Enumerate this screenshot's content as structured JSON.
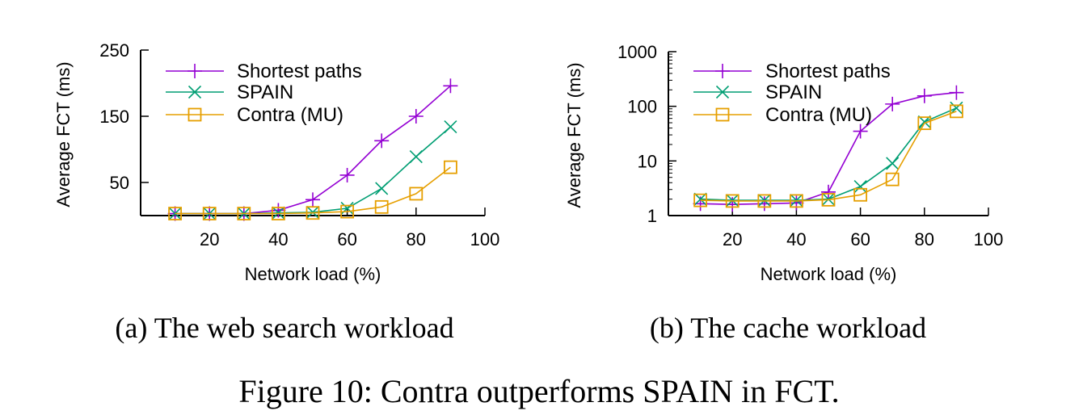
{
  "figure_caption": "Figure 10: Contra outperforms SPAIN in FCT.",
  "colors": {
    "shortest": "#9400d3",
    "spain": "#009e73",
    "contra": "#e69f00",
    "axis": "#000000"
  },
  "chart_data": [
    {
      "id": "a",
      "type": "line",
      "caption": "(a) The web search workload",
      "xlabel": "Network load (%)",
      "ylabel": "Average FCT (ms)",
      "xlim": [
        0,
        100
      ],
      "ylim": [
        0,
        250
      ],
      "yscale": "linear",
      "xticks": [
        20,
        40,
        60,
        80,
        100
      ],
      "xtick_labels": [
        "20",
        "40",
        "60",
        "80",
        "100"
      ],
      "yticks": [
        50,
        150,
        250
      ],
      "ytick_labels": [
        "50",
        "150",
        "250"
      ],
      "grid": false,
      "legend_position": "top-left",
      "x": [
        10,
        20,
        30,
        40,
        50,
        60,
        70,
        80,
        90
      ],
      "series": [
        {
          "name": "Shortest paths",
          "marker": "plus",
          "color_key": "shortest",
          "values": [
            3,
            3,
            3,
            8,
            24,
            61,
            113,
            150,
            196
          ]
        },
        {
          "name": "SPAIN",
          "marker": "cross",
          "color_key": "spain",
          "values": [
            3,
            3,
            3,
            4,
            5,
            11,
            41,
            89,
            134
          ]
        },
        {
          "name": "Contra (MU)",
          "marker": "square",
          "color_key": "contra",
          "values": [
            3,
            3,
            3,
            3,
            4,
            6,
            13,
            33,
            73
          ]
        }
      ]
    },
    {
      "id": "b",
      "type": "line",
      "caption": "(b) The cache workload",
      "xlabel": "Network load (%)",
      "ylabel": "Average FCT (ms)",
      "xlim": [
        0,
        100
      ],
      "ylim": [
        1,
        1000
      ],
      "yscale": "log",
      "xticks": [
        20,
        40,
        60,
        80,
        100
      ],
      "xtick_labels": [
        "20",
        "40",
        "60",
        "80",
        "100"
      ],
      "yticks": [
        1,
        10,
        100,
        1000
      ],
      "ytick_labels": [
        "1",
        "10",
        "100",
        "1000"
      ],
      "grid": false,
      "legend_position": "top-left",
      "x": [
        10,
        20,
        30,
        40,
        50,
        60,
        70,
        80,
        90
      ],
      "series": [
        {
          "name": "Shortest paths",
          "marker": "plus",
          "color_key": "shortest",
          "values": [
            1.65,
            1.6,
            1.65,
            1.7,
            2.7,
            35,
            110,
            155,
            178
          ]
        },
        {
          "name": "SPAIN",
          "marker": "cross",
          "color_key": "spain",
          "values": [
            2.0,
            1.9,
            1.9,
            1.9,
            2.0,
            3.4,
            9,
            52,
            93
          ]
        },
        {
          "name": "Contra (MU)",
          "marker": "square",
          "color_key": "contra",
          "values": [
            1.9,
            1.85,
            1.85,
            1.85,
            1.95,
            2.4,
            4.6,
            49,
            81
          ]
        }
      ]
    }
  ]
}
